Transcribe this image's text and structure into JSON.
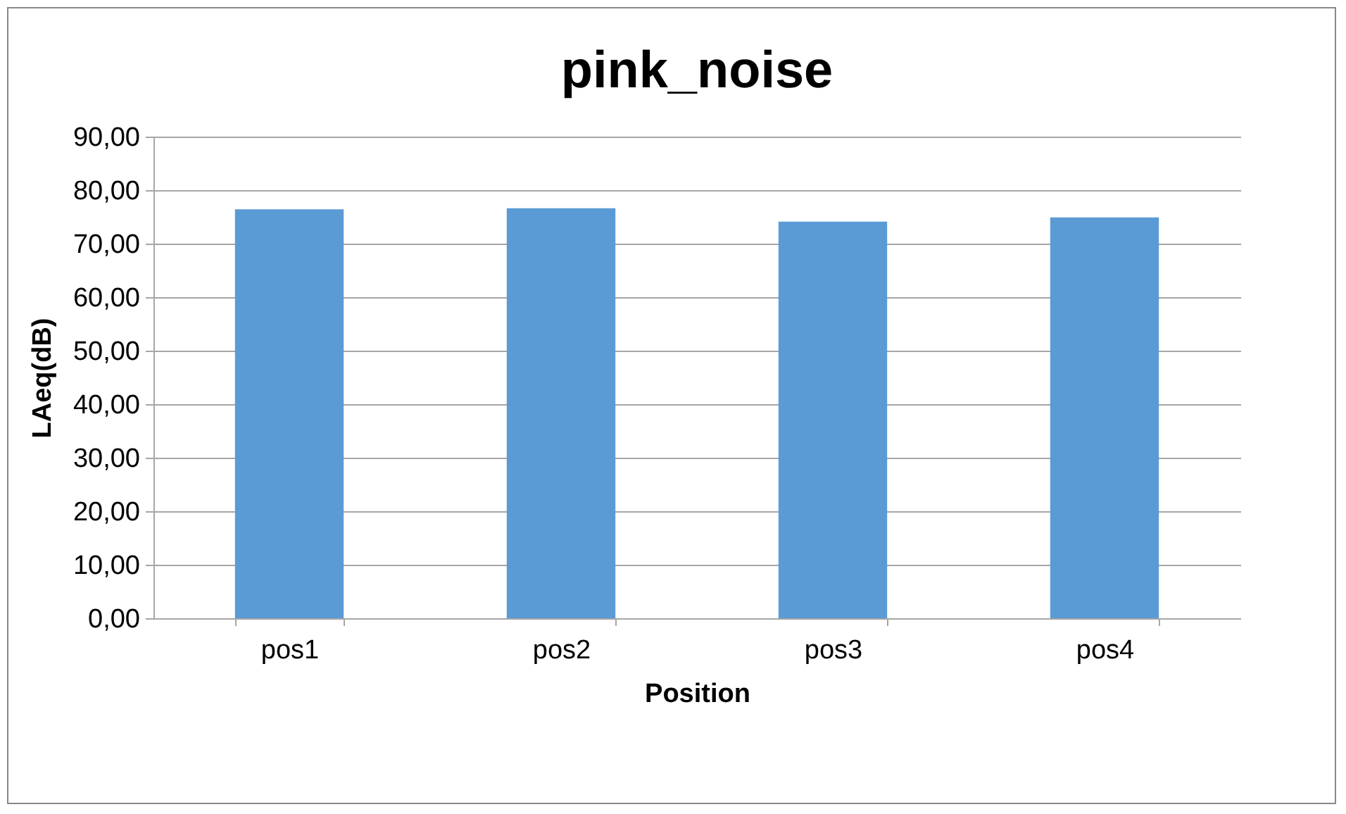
{
  "chart_data": {
    "type": "bar",
    "title": "pink_noise",
    "xlabel": "Position",
    "ylabel": "LAeq(dB)",
    "categories": [
      "pos1",
      "pos2",
      "pos3",
      "pos4"
    ],
    "values": [
      76.4,
      76.6,
      74.1,
      74.9
    ],
    "color": "#5b9bd5",
    "ylim": [
      0,
      90
    ],
    "yticks": [
      {
        "value": 0,
        "label": "0,00"
      },
      {
        "value": 10,
        "label": "10,00"
      },
      {
        "value": 20,
        "label": "20,00"
      },
      {
        "value": 30,
        "label": "30,00"
      },
      {
        "value": 40,
        "label": "40,00"
      },
      {
        "value": 50,
        "label": "50,00"
      },
      {
        "value": 60,
        "label": "60,00"
      },
      {
        "value": 70,
        "label": "70,00"
      },
      {
        "value": 80,
        "label": "80,00"
      },
      {
        "value": 90,
        "label": "90,00"
      }
    ],
    "grid": "y"
  }
}
